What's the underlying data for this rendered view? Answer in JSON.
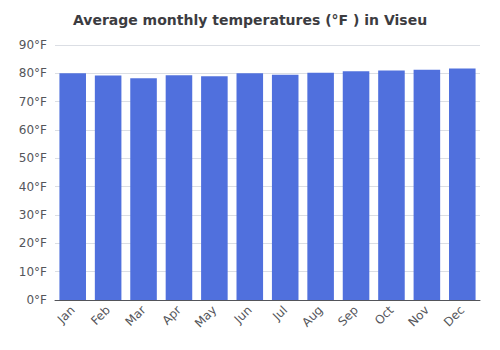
{
  "chart_data": {
    "type": "bar",
    "title": "Average monthly temperatures (°F ) in Viseu",
    "categories": [
      "Jan",
      "Feb",
      "Mar",
      "Apr",
      "May",
      "Jun",
      "Jul",
      "Aug",
      "Sep",
      "Oct",
      "Nov",
      "Dec"
    ],
    "values": [
      80.0,
      79.2,
      78.3,
      79.3,
      79.0,
      80.0,
      79.5,
      80.2,
      80.7,
      81.0,
      81.3,
      81.7
    ],
    "ylim": [
      0,
      90
    ],
    "yticks": [
      {
        "value": 0,
        "label": "0°F"
      },
      {
        "value": 10,
        "label": "10°F"
      },
      {
        "value": 20,
        "label": "20°F"
      },
      {
        "value": 30,
        "label": "30°F"
      },
      {
        "value": 40,
        "label": "40°F"
      },
      {
        "value": 50,
        "label": "50°F"
      },
      {
        "value": 60,
        "label": "60°F"
      },
      {
        "value": 70,
        "label": "70°F"
      },
      {
        "value": 80,
        "label": "80°F"
      },
      {
        "value": 90,
        "label": "90°F"
      }
    ],
    "grid": true
  }
}
